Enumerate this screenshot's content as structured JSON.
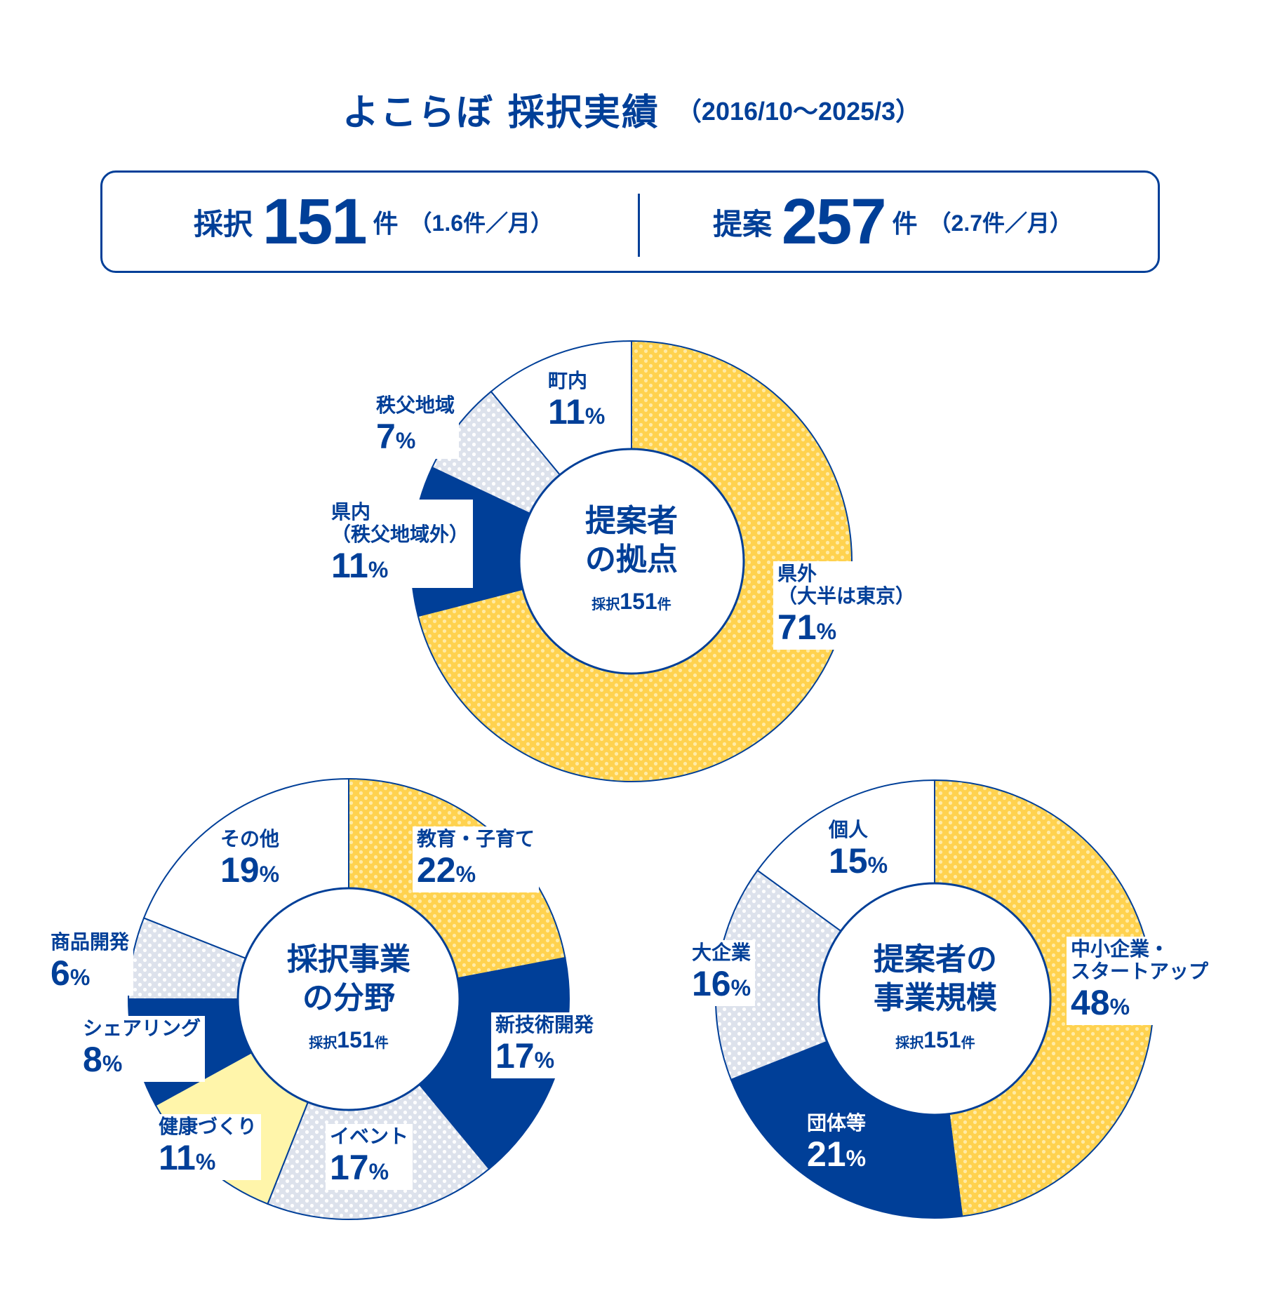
{
  "header": {
    "title": "よこらぼ 採択実績",
    "period": "（2016/10～2025/3）"
  },
  "summary": {
    "adopted": {
      "label": "採択",
      "count": "151",
      "unit": "件",
      "rate": "（1.6件／月）"
    },
    "proposed": {
      "label": "提案",
      "count": "257",
      "unit": "件",
      "rate": "（2.7件／月）"
    }
  },
  "colors": {
    "navy": "#003F98",
    "yellow": "#FFD24F",
    "light_blue": "#DDE2EC",
    "pale_yellow": "#FFF5AA",
    "white": "#FFFFFF"
  },
  "chart_data": [
    {
      "type": "pie",
      "id": "base",
      "title": "提案者の拠点",
      "subtitle_prefix": "採択",
      "subtitle_count": "151",
      "subtitle_unit": "件",
      "slices": [
        {
          "label": "県外（大半は東京）",
          "label_lines": [
            "県外",
            "（大半は東京）"
          ],
          "value": 71,
          "color": "yellow",
          "pattern": "dots"
        },
        {
          "label": "県内（秩父地域外）",
          "label_lines": [
            "県内",
            "（秩父地域外）"
          ],
          "value": 11,
          "color": "navy",
          "pattern": "none"
        },
        {
          "label": "秩父地域",
          "label_lines": [
            "秩父地域"
          ],
          "value": 7,
          "color": "light_blue",
          "pattern": "dots"
        },
        {
          "label": "町内",
          "label_lines": [
            "町内"
          ],
          "value": 11,
          "color": "white",
          "pattern": "none"
        }
      ]
    },
    {
      "type": "pie",
      "id": "field",
      "title": "採択事業の分野",
      "title_lines": [
        "採択事業",
        "の分野"
      ],
      "subtitle_prefix": "採択",
      "subtitle_count": "151",
      "subtitle_unit": "件",
      "slices": [
        {
          "label": "教育・子育て",
          "label_lines": [
            "教育・子育て"
          ],
          "value": 22,
          "color": "yellow",
          "pattern": "dots"
        },
        {
          "label": "新技術開発",
          "label_lines": [
            "新技術開発"
          ],
          "value": 17,
          "color": "navy",
          "pattern": "none"
        },
        {
          "label": "イベント",
          "label_lines": [
            "イベント"
          ],
          "value": 17,
          "color": "light_blue",
          "pattern": "dots"
        },
        {
          "label": "健康づくり",
          "label_lines": [
            "健康づくり"
          ],
          "value": 11,
          "color": "pale_yellow",
          "pattern": "none"
        },
        {
          "label": "シェアリング",
          "label_lines": [
            "シェアリング"
          ],
          "value": 8,
          "color": "navy",
          "pattern": "none"
        },
        {
          "label": "商品開発",
          "label_lines": [
            "商品開発"
          ],
          "value": 6,
          "color": "light_blue",
          "pattern": "dots"
        },
        {
          "label": "その他",
          "label_lines": [
            "その他"
          ],
          "value": 19,
          "color": "white",
          "pattern": "none"
        }
      ]
    },
    {
      "type": "pie",
      "id": "scale",
      "title": "提案者の事業規模",
      "title_lines": [
        "提案者の",
        "事業規模"
      ],
      "subtitle_prefix": "採択",
      "subtitle_count": "151",
      "subtitle_unit": "件",
      "slices": [
        {
          "label": "中小企業・スタートアップ",
          "label_lines": [
            "中小企業・",
            "スタートアップ"
          ],
          "value": 48,
          "color": "yellow",
          "pattern": "dots"
        },
        {
          "label": "団体等",
          "label_lines": [
            "団体等"
          ],
          "value": 21,
          "color": "navy",
          "pattern": "none"
        },
        {
          "label": "大企業",
          "label_lines": [
            "大企業"
          ],
          "value": 16,
          "color": "light_blue",
          "pattern": "dots"
        },
        {
          "label": "個人",
          "label_lines": [
            "個人"
          ],
          "value": 15,
          "color": "white",
          "pattern": "none"
        }
      ]
    }
  ],
  "labels": {
    "base": [
      {
        "lines": [
          "県外",
          "（大半は東京）"
        ],
        "pct": "71"
      },
      {
        "lines": [
          "県内",
          "（秩父地域外）"
        ],
        "pct": "11"
      },
      {
        "lines": [
          "秩父地域"
        ],
        "pct": "7"
      },
      {
        "lines": [
          "町内"
        ],
        "pct": "11"
      }
    ],
    "base_title_lines": [
      "提案者",
      "の拠点"
    ],
    "pct_sign": "%"
  }
}
